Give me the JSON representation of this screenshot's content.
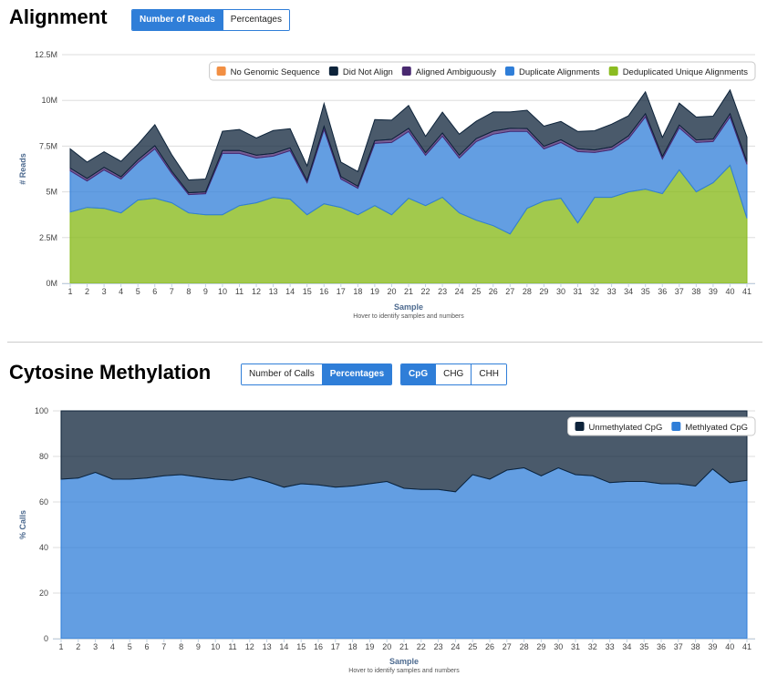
{
  "alignment": {
    "title": "Alignment",
    "buttons": [
      {
        "label": "Number of Reads",
        "active": true
      },
      {
        "label": "Percentages",
        "active": false
      }
    ]
  },
  "methylation": {
    "title": "Cytosine Methylation",
    "mode_buttons": [
      {
        "label": "Number of Calls",
        "active": false
      },
      {
        "label": "Percentages",
        "active": true
      }
    ],
    "context_buttons": [
      {
        "label": "CpG",
        "active": true
      },
      {
        "label": "CHG",
        "active": false
      },
      {
        "label": "CHH",
        "active": false
      }
    ]
  },
  "chart_data": [
    {
      "type": "area",
      "stacked": true,
      "xlabel": "Sample",
      "ylabel": "# Reads",
      "hint": "Hover to identify samples and numbers",
      "ylim": [
        0,
        12500000
      ],
      "yticks": [
        "0M",
        "2.5M",
        "5M",
        "7.5M",
        "10M",
        "12.5M"
      ],
      "legend_position": "top-right",
      "x": [
        1,
        2,
        3,
        4,
        5,
        6,
        7,
        8,
        9,
        10,
        11,
        12,
        13,
        14,
        15,
        16,
        17,
        18,
        19,
        20,
        21,
        22,
        23,
        24,
        25,
        26,
        27,
        28,
        29,
        30,
        31,
        32,
        33,
        34,
        35,
        36,
        37,
        38,
        39,
        40,
        41
      ],
      "series": [
        {
          "name": "No Genomic Sequence",
          "color": "#f28f43",
          "values": [
            0,
            0,
            0,
            0,
            0,
            0,
            0,
            0,
            0,
            0,
            0,
            0,
            0,
            0,
            0,
            0,
            0,
            0,
            0,
            0,
            0,
            0,
            0,
            0,
            0,
            0,
            0,
            0,
            0,
            0,
            0,
            0,
            0,
            0,
            0,
            0,
            0,
            0,
            0,
            0,
            0
          ]
        },
        {
          "name": "Deduplicated Unique Alignments",
          "color": "#8bbc21",
          "values": [
            3900000,
            4150000,
            4100000,
            3850000,
            4550000,
            4650000,
            4400000,
            3850000,
            3750000,
            3750000,
            4250000,
            4400000,
            4700000,
            4600000,
            3750000,
            4350000,
            4150000,
            3750000,
            4250000,
            3750000,
            4650000,
            4250000,
            4700000,
            3850000,
            3450000,
            3150000,
            2700000,
            4100000,
            4500000,
            4650000,
            3300000,
            4700000,
            4700000,
            5000000,
            5150000,
            4900000,
            6200000,
            5000000,
            5500000,
            6450000,
            3550000
          ]
        },
        {
          "name": "Duplicate Alignments",
          "color": "#2f7ed8",
          "values": [
            2250000,
            1450000,
            2100000,
            1850000,
            2050000,
            2700000,
            1600000,
            1000000,
            1150000,
            3350000,
            2850000,
            2450000,
            2250000,
            2650000,
            1750000,
            4050000,
            1550000,
            1450000,
            3400000,
            3950000,
            3650000,
            2750000,
            3350000,
            3000000,
            4300000,
            5000000,
            5600000,
            4200000,
            2850000,
            3050000,
            3900000,
            2450000,
            2600000,
            2900000,
            3950000,
            1900000,
            2300000,
            2700000,
            2250000,
            2650000,
            2950000
          ]
        },
        {
          "name": "Aligned Ambiguously",
          "color": "#492970",
          "values": [
            150000,
            130000,
            140000,
            120000,
            150000,
            170000,
            130000,
            100000,
            100000,
            160000,
            160000,
            150000,
            150000,
            150000,
            120000,
            180000,
            130000,
            110000,
            150000,
            170000,
            170000,
            140000,
            160000,
            150000,
            160000,
            170000,
            170000,
            160000,
            140000,
            150000,
            150000,
            140000,
            150000,
            160000,
            170000,
            130000,
            150000,
            140000,
            140000,
            170000,
            150000
          ]
        },
        {
          "name": "Did Not Align",
          "color": "#0d233a",
          "values": [
            1050000,
            900000,
            850000,
            850000,
            850000,
            1150000,
            900000,
            700000,
            700000,
            1050000,
            1150000,
            950000,
            1250000,
            1050000,
            800000,
            1250000,
            800000,
            800000,
            1150000,
            1050000,
            1250000,
            900000,
            1150000,
            1150000,
            950000,
            1050000,
            900000,
            1000000,
            1100000,
            1000000,
            950000,
            1050000,
            1250000,
            1100000,
            1200000,
            1050000,
            1200000,
            1250000,
            1250000,
            1300000,
            1350000
          ]
        }
      ]
    },
    {
      "type": "area",
      "stacked": true,
      "percent": true,
      "xlabel": "Sample",
      "ylabel": "% Calls",
      "hint": "Hover to identify samples and numbers",
      "ylim": [
        0,
        100
      ],
      "yticks": [
        "0",
        "20",
        "40",
        "60",
        "80",
        "100"
      ],
      "legend_position": "top-right",
      "x": [
        1,
        2,
        3,
        4,
        5,
        6,
        7,
        8,
        9,
        10,
        11,
        12,
        13,
        14,
        15,
        16,
        17,
        18,
        19,
        20,
        21,
        22,
        23,
        24,
        25,
        26,
        27,
        28,
        29,
        30,
        31,
        32,
        33,
        34,
        35,
        36,
        37,
        38,
        39,
        40,
        41
      ],
      "series": [
        {
          "name": "Methlyated CpG",
          "color": "#2f7ed8",
          "values": [
            70,
            70.5,
            73,
            70,
            70,
            70.5,
            71.5,
            72,
            71,
            70,
            69.5,
            71,
            69,
            66.5,
            68,
            67.5,
            66.5,
            67,
            68,
            69,
            66,
            65.5,
            65.5,
            64.5,
            72,
            70,
            74,
            75,
            71.5,
            75,
            72,
            71.5,
            68.5,
            69,
            69,
            68,
            68,
            67,
            74.5,
            68.5,
            69.5
          ]
        },
        {
          "name": "Unmethylated CpG",
          "color": "#0d233a",
          "values": [
            30,
            29.5,
            27,
            30,
            30,
            29.5,
            28.5,
            28,
            29,
            30,
            30.5,
            29,
            31,
            33.5,
            32,
            32.5,
            33.5,
            33,
            32,
            31,
            34,
            34.5,
            34.5,
            35.5,
            28,
            30,
            26,
            25,
            28.5,
            25,
            28,
            28.5,
            31.5,
            31,
            31,
            32,
            32,
            33,
            25.5,
            31.5,
            30.5
          ]
        }
      ]
    }
  ]
}
